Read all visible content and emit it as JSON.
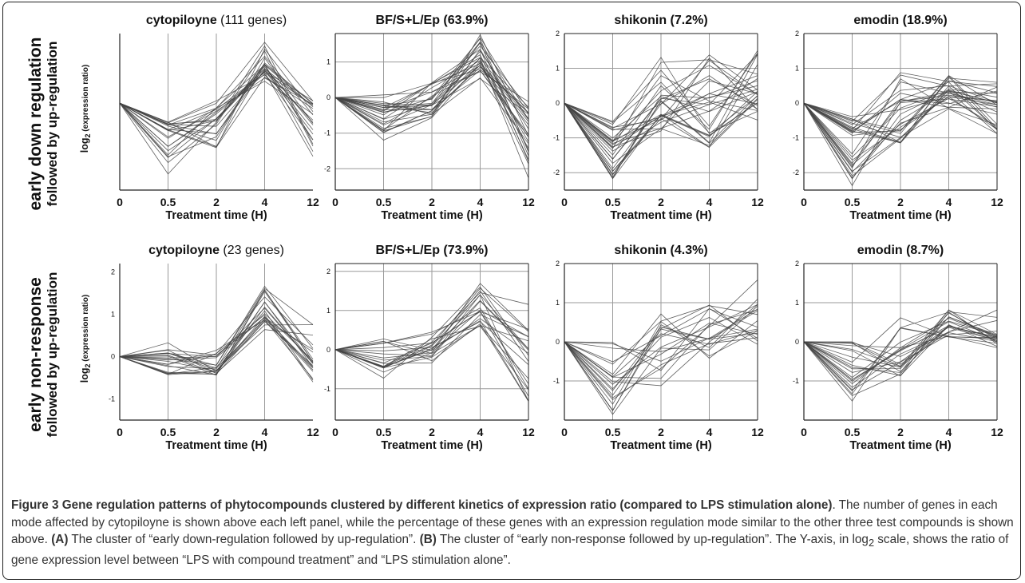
{
  "chart_data": [
    {
      "type": "line",
      "row": 0,
      "col": 0,
      "title_parts": [
        {
          "text": "cytopiloyne",
          "bold": true
        },
        {
          "text": " (111 genes)",
          "bold": false
        }
      ],
      "xlabel": "Treatment time (H)",
      "ylabel": "log2 (expression ratio)",
      "x": [
        "0",
        "0.5",
        "2",
        "4",
        "12"
      ],
      "ylim": [
        -2.5,
        2
      ],
      "yticks": [],
      "grid": "vertical",
      "lines": 24,
      "series_envelope": {
        "low": [
          0,
          -2.1,
          -1.3,
          0.55,
          -1.6
        ],
        "high": [
          0,
          -0.5,
          0.15,
          1.85,
          0.1
        ],
        "center": [
          0,
          -0.8,
          -0.4,
          1.0,
          -0.5
        ]
      }
    },
    {
      "type": "line",
      "row": 0,
      "col": 1,
      "title_parts": [
        {
          "text": "BF/S+L/Ep",
          "bold": true
        },
        {
          "text": "  (63.9%)",
          "bold": true
        }
      ],
      "xlabel": "Treatment time (H)",
      "ylabel": "",
      "x": [
        "0",
        "0.5",
        "2",
        "4",
        "12"
      ],
      "ylim": [
        -2.6,
        1.8
      ],
      "yticks": [
        "1",
        "0",
        "-1",
        "-2"
      ],
      "grid": "both",
      "lines": 28,
      "series_envelope": {
        "low": [
          0,
          -1.2,
          -0.6,
          0.3,
          -2.6
        ],
        "high": [
          0,
          0.1,
          0.5,
          1.8,
          0
        ],
        "center": [
          0,
          -0.4,
          -0.2,
          1.0,
          -1.2
        ]
      }
    },
    {
      "type": "line",
      "row": 0,
      "col": 2,
      "title_parts": [
        {
          "text": "shikonin",
          "bold": true
        },
        {
          "text": "  (7.2%)",
          "bold": true
        }
      ],
      "xlabel": "Treatment time (H)",
      "ylabel": "",
      "x": [
        "0",
        "0.5",
        "2",
        "4",
        "12"
      ],
      "ylim": [
        -2.5,
        2
      ],
      "yticks": [
        "2",
        "1",
        "0",
        "-1",
        "-2"
      ],
      "grid": "both",
      "lines": 30,
      "series_envelope": {
        "low": [
          0,
          -2.2,
          -1.0,
          -1.3,
          -0.9
        ],
        "high": [
          0,
          -0.5,
          1.4,
          1.4,
          1.6
        ],
        "center": [
          0,
          -1.2,
          -0.3,
          0.0,
          0.2
        ]
      }
    },
    {
      "type": "line",
      "row": 0,
      "col": 3,
      "title_parts": [
        {
          "text": "emodin",
          "bold": true
        },
        {
          "text": " (18.9%)",
          "bold": true
        }
      ],
      "xlabel": "Treatment time (H)",
      "ylabel": "",
      "x": [
        "0",
        "0.5",
        "2",
        "4",
        "12"
      ],
      "ylim": [
        -2.5,
        2
      ],
      "yticks": [
        "2",
        "1",
        "0",
        "-1",
        "-2"
      ],
      "grid": "both",
      "lines": 30,
      "series_envelope": {
        "low": [
          0,
          -2.4,
          -1.3,
          -0.2,
          -1.0
        ],
        "high": [
          0,
          -0.3,
          0.9,
          0.8,
          0.7
        ],
        "center": [
          0,
          -0.9,
          -0.6,
          0.2,
          0.0
        ]
      }
    },
    {
      "type": "line",
      "row": 1,
      "col": 0,
      "title_parts": [
        {
          "text": "cytopiloyne",
          "bold": true
        },
        {
          "text": " (23 genes)",
          "bold": false
        }
      ],
      "xlabel": "Treatment time (H)",
      "ylabel": "log2 (expression ratio)",
      "x": [
        "0",
        "0.5",
        "2",
        "4",
        "12"
      ],
      "ylim": [
        -1.5,
        2.2
      ],
      "yticks": [
        "2",
        "1",
        "0",
        "-1"
      ],
      "grid": "vertical",
      "lines": 23,
      "series_envelope": {
        "low": [
          0,
          -0.5,
          -0.45,
          0.6,
          -0.6
        ],
        "high": [
          0,
          0.35,
          0.15,
          1.7,
          1.0
        ],
        "center": [
          0,
          -0.15,
          -0.25,
          1.0,
          -0.2
        ]
      }
    },
    {
      "type": "line",
      "row": 1,
      "col": 1,
      "title_parts": [
        {
          "text": "BF/S+L/Ep",
          "bold": true
        },
        {
          "text": "  (73.9%)",
          "bold": true
        }
      ],
      "xlabel": "Treatment time (H)",
      "ylabel": "",
      "x": [
        "0",
        "0.5",
        "2",
        "4",
        "12"
      ],
      "ylim": [
        -1.8,
        2.2
      ],
      "yticks": [
        "2",
        "1",
        "0",
        "-1"
      ],
      "grid": "both",
      "lines": 22,
      "series_envelope": {
        "low": [
          0,
          -0.75,
          -0.35,
          0.5,
          -1.7
        ],
        "high": [
          0,
          0.3,
          0.6,
          1.7,
          1.4
        ],
        "center": [
          0,
          -0.4,
          0.1,
          0.9,
          -0.8
        ]
      }
    },
    {
      "type": "line",
      "row": 1,
      "col": 2,
      "title_parts": [
        {
          "text": "shikonin",
          "bold": true
        },
        {
          "text": "  (4.3%)",
          "bold": true
        }
      ],
      "xlabel": "Treatment time (H)",
      "ylabel": "",
      "x": [
        "0",
        "0.5",
        "2",
        "4",
        "12"
      ],
      "ylim": [
        -2.0,
        2.0
      ],
      "yticks": [
        "2",
        "1",
        "0",
        "-1"
      ],
      "grid": "both",
      "lines": 20,
      "series_envelope": {
        "low": [
          0,
          -1.9,
          -1.3,
          -0.5,
          -0.2
        ],
        "high": [
          0,
          0.0,
          1.1,
          1.2,
          1.8
        ],
        "center": [
          0,
          -1.0,
          0.0,
          0.1,
          0.3
        ]
      }
    },
    {
      "type": "line",
      "row": 1,
      "col": 3,
      "title_parts": [
        {
          "text": "emodin",
          "bold": true
        },
        {
          "text": "  (8.7%)",
          "bold": true
        }
      ],
      "xlabel": "Treatment time (H)",
      "ylabel": "",
      "x": [
        "0",
        "0.5",
        "2",
        "4",
        "12"
      ],
      "ylim": [
        -2.0,
        2.0
      ],
      "yticks": [
        "2",
        "1",
        "0",
        "-1"
      ],
      "grid": "both",
      "lines": 24,
      "series_envelope": {
        "low": [
          0,
          -1.6,
          -0.9,
          0.0,
          -0.2
        ],
        "high": [
          0,
          0.0,
          0.8,
          1.0,
          0.9
        ],
        "center": [
          0,
          -0.9,
          -0.4,
          0.4,
          0.15
        ]
      }
    }
  ],
  "row_labels": [
    {
      "line1": "early down regulation",
      "line2": "followed by up-regulation"
    },
    {
      "line1": "early non-response",
      "line2": "followed by up-regulation"
    }
  ],
  "caption": {
    "figure_label": "Figure 3",
    "bold_title": "Gene regulation patterns of phytocompounds clustered by different kinetics of expression ratio (compared to LPS stimulation alone)",
    "sentence1": ". The number of genes in each mode affected by cytopiloyne is shown above each left panel, while the percentage of these genes with an expression regulation mode similar to the other three test compounds is shown above. ",
    "label_a": "(A)",
    "text_a": " The cluster of “early down-regulation followed by up-regulation”. ",
    "label_b": "(B)",
    "text_b": " The cluster of “early non-response followed by up-regulation”. The Y-axis, in log",
    "subscript": "2",
    "text_end": " scale, shows the ratio of gene expression level between “LPS with compound treatment” and “LPS stimulation alone”."
  },
  "colors": {
    "line": "#444444",
    "grid": "#9a9a9a",
    "axis": "#222222",
    "text": "#111111"
  }
}
